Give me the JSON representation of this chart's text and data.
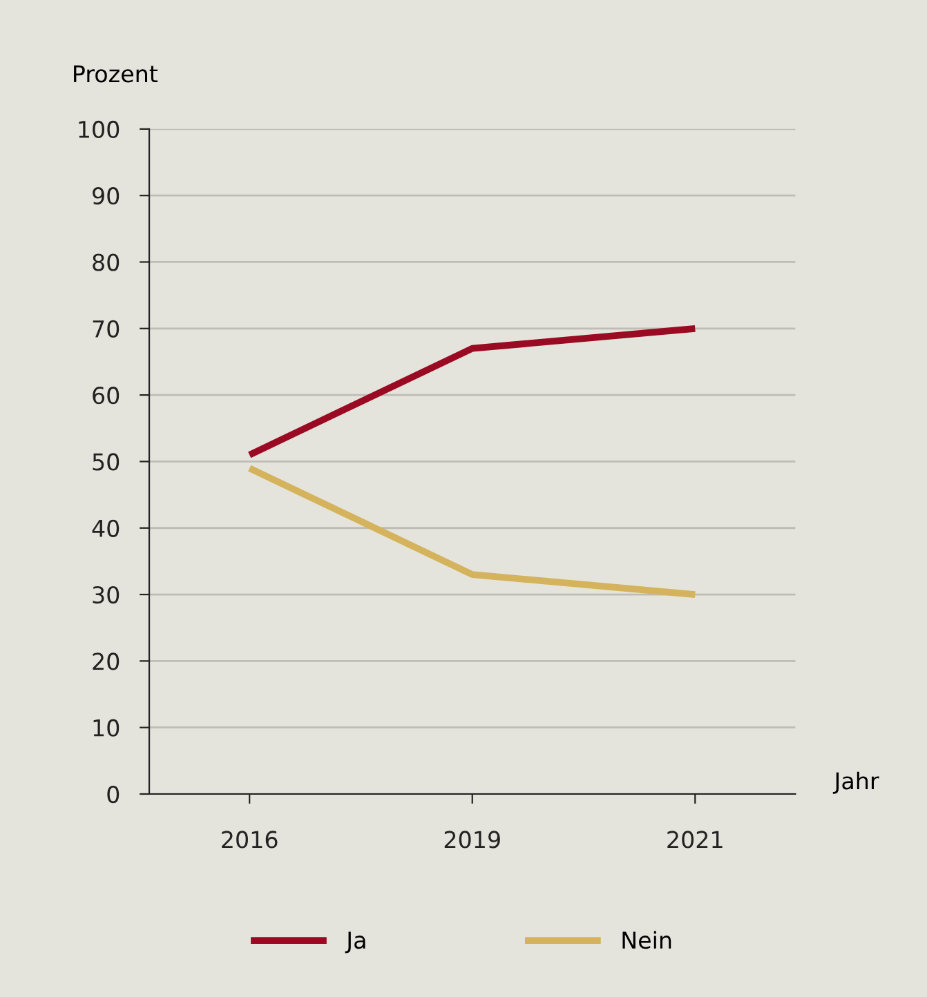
{
  "chart_data": {
    "type": "line",
    "ylabel": "Prozent",
    "xlabel": "Jahr",
    "categories": [
      "2016",
      "2019",
      "2021"
    ],
    "series": [
      {
        "name": "Ja",
        "color": "#9b0a23",
        "values": [
          51,
          67,
          70
        ]
      },
      {
        "name": "Nein",
        "color": "#d4b35c",
        "values": [
          49,
          33,
          30
        ]
      }
    ],
    "ylim": [
      0,
      100
    ],
    "yticks": [
      0,
      10,
      20,
      30,
      40,
      50,
      60,
      70,
      80,
      90,
      100
    ],
    "grid": "y",
    "legend": "bottom",
    "marker": "none",
    "line_style": "solid"
  }
}
